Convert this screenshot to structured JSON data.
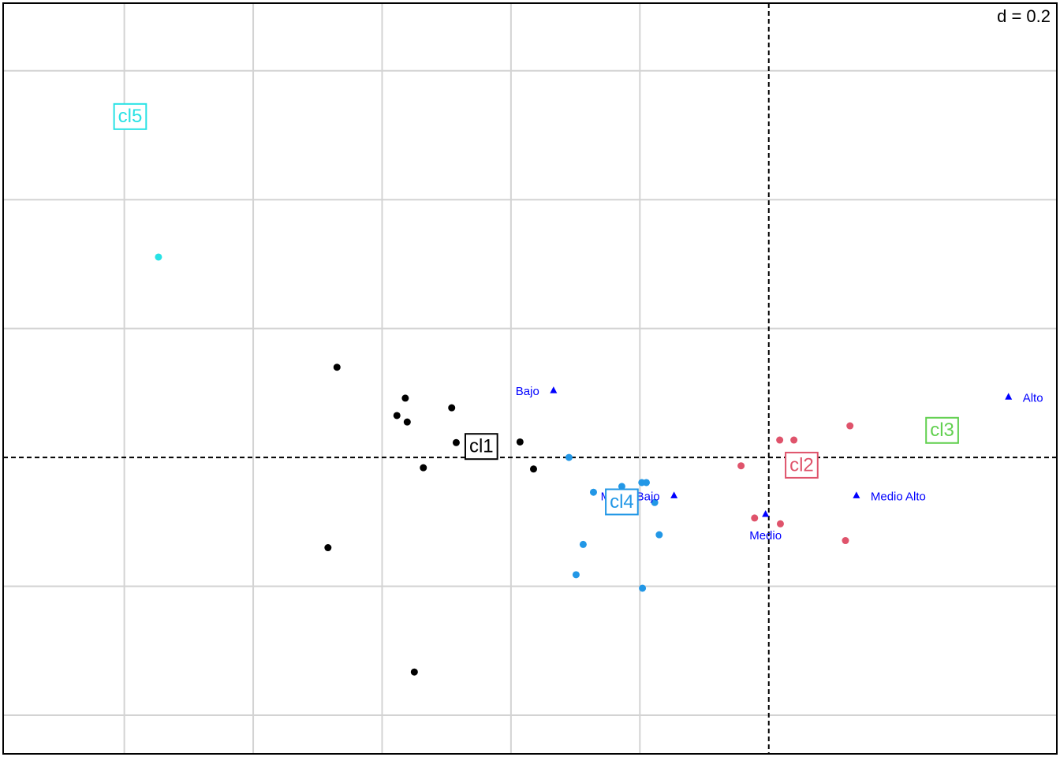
{
  "chart_data": {
    "type": "scatter",
    "annotation": "d = 0.2",
    "xlim": [
      -1.188,
      0.447
    ],
    "ylim": [
      -0.46,
      0.705
    ],
    "xticks": [
      -1.0,
      -0.8,
      -0.6,
      -0.4,
      -0.2
    ],
    "yticks": [
      -0.4,
      -0.2,
      0.2,
      0.4,
      0.6
    ],
    "grid": true,
    "series": [
      {
        "name": "cl1",
        "color": "#000000",
        "label_x": -0.446,
        "label_y": 0.017,
        "x": [
          -0.67,
          -0.564,
          -0.577,
          -0.561,
          -0.492,
          -0.485,
          -0.386,
          -0.536,
          -0.365,
          -0.684,
          -0.55
        ],
        "values": [
          0.14,
          0.092,
          0.065,
          0.055,
          0.077,
          0.023,
          0.024,
          -0.016,
          -0.018,
          -0.14,
          -0.333
        ]
      },
      {
        "name": "cl2",
        "color": "#DF536B",
        "label_x": 0.051,
        "label_y": -0.012,
        "x": [
          0.017,
          0.039,
          0.126,
          -0.043,
          0.071,
          -0.022,
          0.018,
          0.119
        ],
        "values": [
          0.027,
          0.027,
          0.049,
          -0.013,
          -0.026,
          -0.094,
          -0.103,
          -0.129
        ]
      },
      {
        "name": "cl3",
        "color": "#61D04F",
        "label_x": 0.269,
        "label_y": 0.042,
        "x": [
          0.269
        ],
        "values": [
          0.042
        ]
      },
      {
        "name": "cl4",
        "color": "#2297E6",
        "label_x": -0.228,
        "label_y": -0.069,
        "x": [
          -0.31,
          -0.272,
          -0.228,
          -0.197,
          -0.19,
          -0.177,
          -0.17,
          -0.288,
          -0.299,
          -0.196
        ],
        "values": [
          0.0,
          -0.054,
          -0.045,
          -0.039,
          -0.039,
          -0.07,
          -0.12,
          -0.135,
          -0.182,
          -0.203
        ]
      },
      {
        "name": "cl5",
        "color": "#28E2E5",
        "label_x": -0.991,
        "label_y": 0.529,
        "x": [
          -0.947
        ],
        "values": [
          0.311
        ]
      }
    ],
    "levels": {
      "color": "#0000FF",
      "names": [
        "Bajo",
        "Medio Bajo",
        "Medio",
        "Medio Alto",
        "Alto"
      ],
      "label_side": [
        "left",
        "left",
        "below",
        "right",
        "right"
      ],
      "x": [
        -0.334,
        -0.147,
        -0.005,
        0.136,
        0.372
      ],
      "values": [
        0.104,
        -0.059,
        -0.088,
        -0.059,
        0.094
      ]
    }
  }
}
